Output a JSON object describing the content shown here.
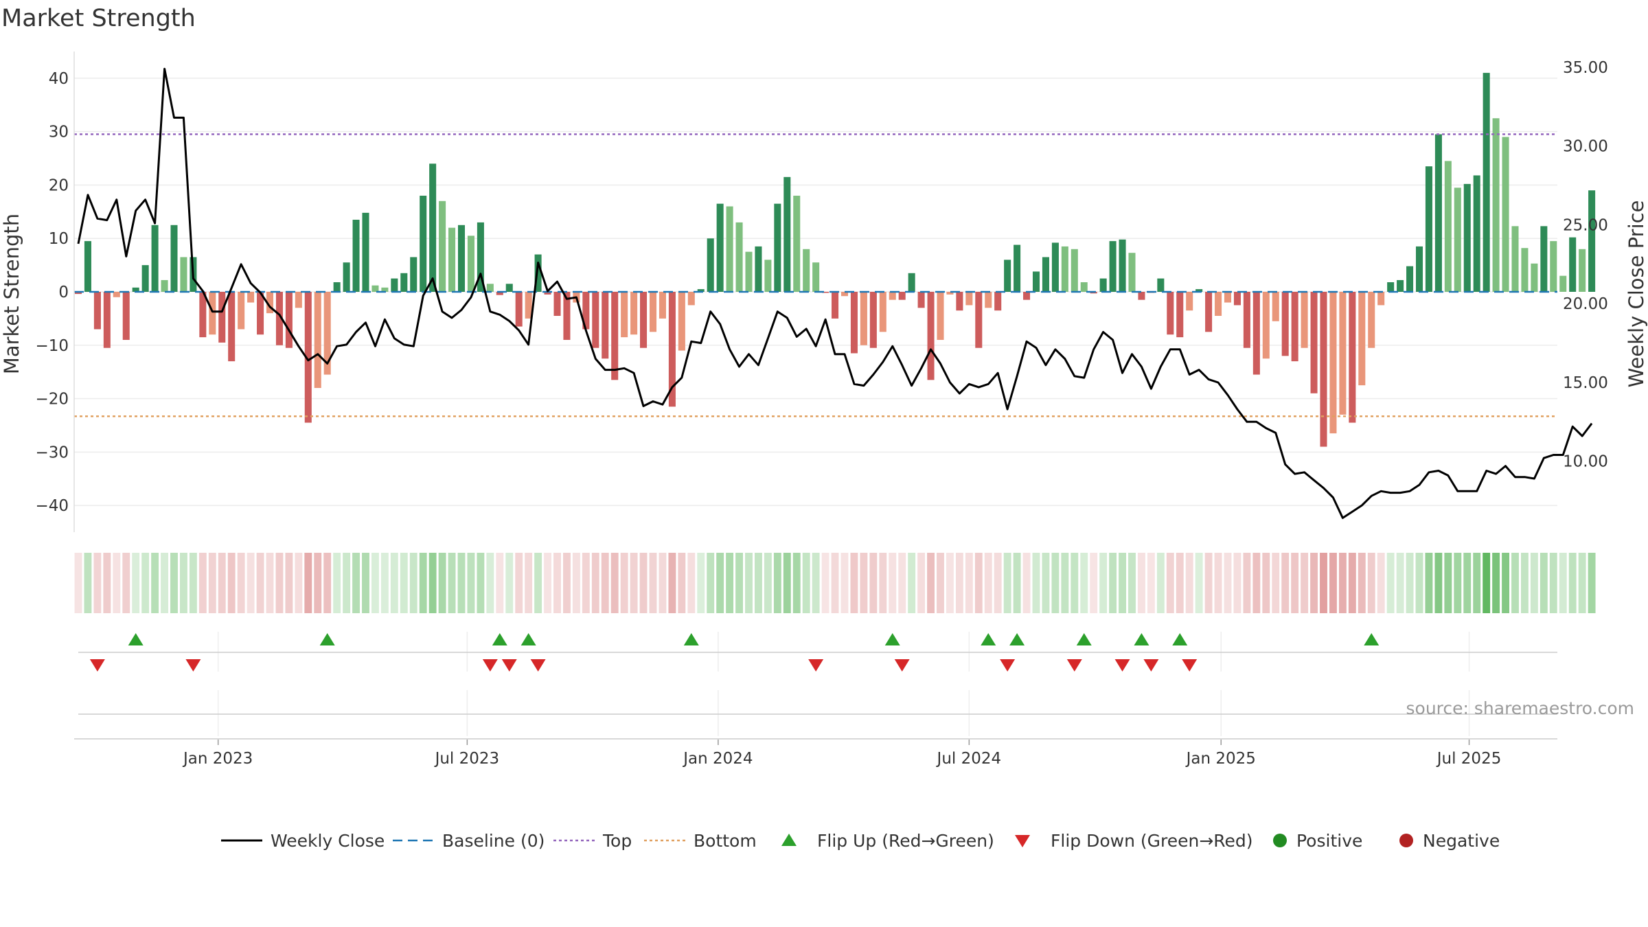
{
  "chart_data": {
    "type": "bar",
    "title": "Market Strength",
    "ylabel_left": "Market Strength",
    "ylabel_right": "Weekly Close Price",
    "ylim_left": [
      -45,
      45
    ],
    "ylim_right": [
      5.5,
      36
    ],
    "yticks_left": [
      40,
      30,
      20,
      10,
      0,
      -10,
      -20,
      -30,
      -40
    ],
    "yticks_right": [
      35,
      30,
      25,
      20,
      15,
      10
    ],
    "yticks_right_labels": [
      "35.00",
      "30.00",
      "25.00",
      "20.00",
      "15.00",
      "10.00"
    ],
    "x_range_weeks": [
      0,
      157
    ],
    "x_tick_labels": [
      "Jan 2023",
      "Jul 2023",
      "Jan 2024",
      "Jul 2024",
      "Jan 2025",
      "Jul 2025"
    ],
    "x_tick_weeks": [
      14.6,
      40.6,
      66.8,
      93.0,
      119.3,
      145.2
    ],
    "top_line": 29.5,
    "bottom_line": -23.3,
    "baseline": 0,
    "market_strength": [
      -0.4,
      9.5,
      -7,
      -10.5,
      -1,
      -9,
      0.8,
      5,
      12.5,
      2.2,
      12.5,
      6.5,
      6.5,
      -8.5,
      -8,
      -9.5,
      -13,
      -7,
      -2,
      -8,
      -4,
      -10,
      -10.5,
      -3,
      -24.5,
      -18,
      -15.5,
      1.8,
      5.5,
      13.5,
      14.8,
      1.2,
      0.8,
      2.5,
      3.5,
      6.5,
      18,
      24,
      17,
      12,
      12.5,
      10.5,
      13,
      1.5,
      -0.6,
      1.5,
      -6.5,
      -5,
      7,
      -0.5,
      -4.5,
      -9,
      -2,
      -7,
      -10.5,
      -12.5,
      -16.5,
      -8.5,
      -8,
      -10.5,
      -7.5,
      -5,
      -21.5,
      -11,
      -2.5,
      0.5,
      10,
      16.5,
      16,
      13,
      7.5,
      8.5,
      6,
      16.5,
      21.5,
      18,
      8,
      5.5,
      -0.2,
      -5,
      -0.8,
      -11.5,
      -10,
      -10.5,
      -7.5,
      -1.5,
      -1.5,
      3.5,
      -3,
      -16.5,
      -9,
      -0.5,
      -3.5,
      -2.5,
      -10.5,
      -3,
      -3.5,
      6,
      8.8,
      -1.5,
      3.8,
      6.5,
      9.2,
      8.5,
      8,
      1.8,
      -0.3,
      2.5,
      9.5,
      9.8,
      7.3,
      -1.5,
      -0.2,
      2.5,
      -8,
      -8.5,
      -3.5,
      0.5,
      -7.5,
      -4.5,
      -2,
      -2.5,
      -10.5,
      -15.5,
      -12.5,
      -5.5,
      -12,
      -13,
      -10.5,
      -19,
      -29,
      -26.5,
      -23,
      -24.5,
      -17.5,
      -10.5,
      -2.5,
      1.8,
      2.2,
      4.8,
      8.5,
      23.5,
      29.5,
      24.5,
      19.5,
      20.2,
      21.8,
      41,
      32.5,
      29,
      12.3,
      8.2,
      5.3,
      12.3,
      9.5,
      3,
      10.2,
      8,
      19
    ],
    "weekly_close": [
      23.8,
      26.9,
      25.4,
      25.3,
      26.6,
      23,
      25.9,
      26.6,
      25.1,
      34.9,
      31.8,
      31.8,
      21.6,
      20.8,
      19.5,
      19.5,
      21,
      22.5,
      21.3,
      20.7,
      19.8,
      19.3,
      18.3,
      17.3,
      16.4,
      16.8,
      16.2,
      17.3,
      17.4,
      18.2,
      18.8,
      17.3,
      19,
      17.8,
      17.4,
      17.3,
      20.5,
      21.6,
      19.5,
      19.1,
      19.6,
      20.4,
      21.9,
      19.5,
      19.3,
      18.9,
      18.3,
      17.4,
      22.6,
      20.8,
      21.4,
      20.3,
      20.4,
      18.3,
      16.5,
      15.8,
      15.8,
      15.9,
      15.6,
      13.5,
      13.8,
      13.6,
      14.7,
      15.3,
      17.6,
      17.5,
      19.5,
      18.7,
      17.1,
      16,
      16.8,
      16.1,
      17.8,
      19.5,
      19.1,
      17.9,
      18.4,
      17.3,
      19,
      16.8,
      16.8,
      14.9,
      14.8,
      15.5,
      16.3,
      17.3,
      16.1,
      14.8,
      15.9,
      17.1,
      16.2,
      15,
      14.3,
      14.9,
      14.7,
      14.9,
      15.6,
      13.3,
      15.4,
      17.6,
      17.2,
      16.1,
      17.1,
      16.5,
      15.4,
      15.3,
      17.1,
      18.2,
      17.7,
      15.6,
      16.8,
      16,
      14.6,
      16,
      17.1,
      17.1,
      15.5,
      15.8,
      15.2,
      15,
      14.2,
      13.3,
      12.5,
      12.5,
      12.1,
      11.8,
      9.8,
      9.2,
      9.3,
      8.8,
      8.3,
      7.7,
      6.4,
      6.8,
      7.2,
      7.8,
      8.1,
      8,
      8,
      8.1,
      8.5,
      9.3,
      9.4,
      9.1,
      8.1,
      8.1,
      8.1,
      9.4,
      9.2,
      9.7,
      9,
      9,
      8.9,
      10.2,
      10.4,
      10.4,
      12.2,
      11.6,
      12.4
    ],
    "flip_up_weeks": [
      6,
      26,
      44,
      47,
      64,
      85,
      95,
      98,
      105,
      111,
      115,
      135
    ],
    "flip_down_weeks": [
      2,
      12,
      43,
      45,
      48,
      77,
      86,
      97,
      104,
      109,
      112,
      116
    ],
    "colors": {
      "strong_green": "#2e8b57",
      "light_green": "#7fbf7f",
      "strong_red": "#cd5c5c",
      "light_red": "#e9967a",
      "top_line": "#9467bd",
      "bottom_line": "#e0a060",
      "baseline": "#1f77b4",
      "close_line": "#000000",
      "flip_up": "#2ca02c",
      "flip_down": "#d62728",
      "positive_dot": "#228b22",
      "negative_dot": "#b22222"
    },
    "source_text": "source: sharemaestro.com",
    "legend": [
      {
        "key": "close",
        "label": "Weekly Close"
      },
      {
        "key": "baseline",
        "label": "Baseline (0)"
      },
      {
        "key": "top",
        "label": "Top"
      },
      {
        "key": "bottom",
        "label": "Bottom"
      },
      {
        "key": "flipup",
        "label": "Flip Up (Red→Green)"
      },
      {
        "key": "flipdown",
        "label": "Flip Down (Green→Red)"
      },
      {
        "key": "positive",
        "label": "Positive"
      },
      {
        "key": "negative",
        "label": "Negative"
      }
    ]
  }
}
